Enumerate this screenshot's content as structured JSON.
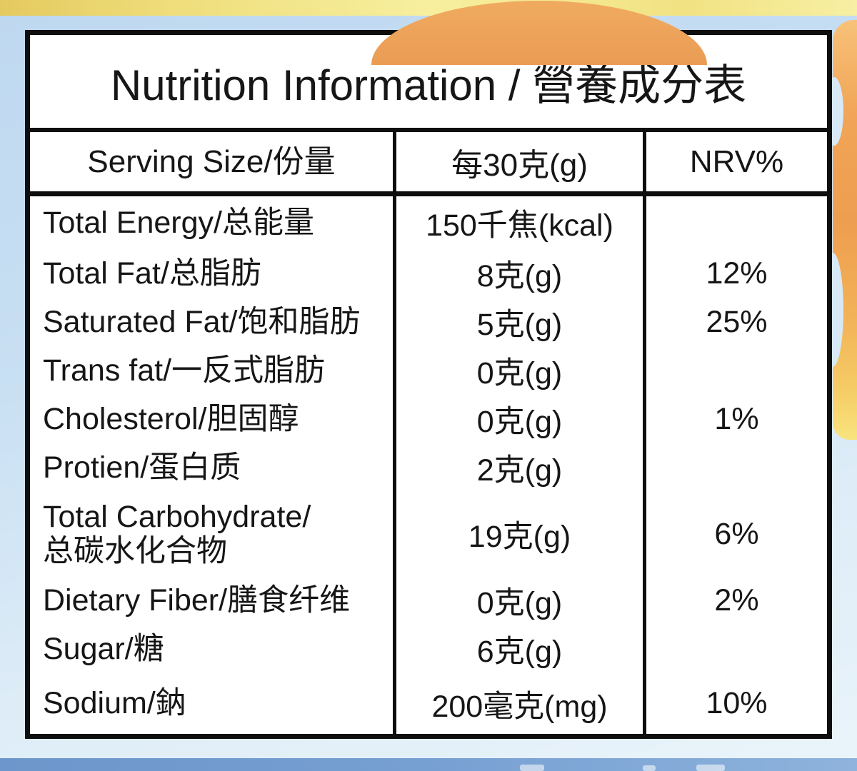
{
  "label": {
    "title": "Nutrition Information / 營養成分表",
    "columns": {
      "nutrient": "Serving Size/份量",
      "amount": "每30克(g)",
      "nrv": "NRV%"
    },
    "rows": [
      {
        "name": "Total Energy/总能量",
        "amount": "150千焦(kcal)",
        "nrv": ""
      },
      {
        "name": "Total Fat/总脂肪",
        "amount": "8克(g)",
        "nrv": "12%"
      },
      {
        "name": "Saturated Fat/饱和脂肪",
        "amount": "5克(g)",
        "nrv": "25%"
      },
      {
        "name": "Trans fat/一反式脂肪",
        "amount": "0克(g)",
        "nrv": ""
      },
      {
        "name": "Cholesterol/胆固醇",
        "amount": "0克(g)",
        "nrv": "1%"
      },
      {
        "name": "Protien/蛋白质",
        "amount": "2克(g)",
        "nrv": ""
      },
      {
        "name": "Total Carbohydrate/\n总碳水化合物",
        "amount": "19克(g)",
        "nrv": "6%"
      },
      {
        "name": "Dietary Fiber/膳食纤维",
        "amount": "0克(g)",
        "nrv": "2%"
      },
      {
        "name": "Sugar/糖",
        "amount": "6克(g)",
        "nrv": ""
      },
      {
        "name": "Sodium/鈉",
        "amount": "200毫克(mg)",
        "nrv": "10%"
      }
    ],
    "colors": {
      "table_border": "#0e0e0e",
      "text": "#161616",
      "top_band_yellow": "#f2e488",
      "background_blue": "#c9e0f3",
      "bottom_band_blue": "#759ed1",
      "orange_accent": "#f0a558"
    }
  }
}
